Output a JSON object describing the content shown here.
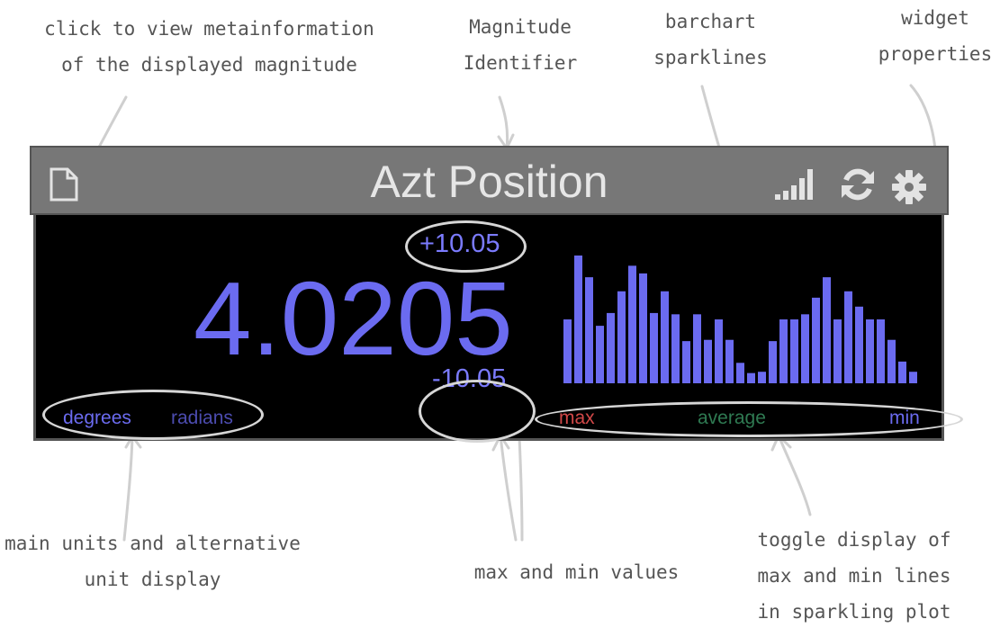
{
  "annotations": {
    "metainfo": "click to view metainformation\nof the displayed magnitude",
    "identifier": "Magnitude\nIdentifier",
    "sparklines": "barchart\nsparklines",
    "properties": "widget\nproperties",
    "units": "main units and alternative\nunit display",
    "maxmin": "max and min values",
    "toggle": "toggle display of\nmax and min lines\nin sparkling plot"
  },
  "widget": {
    "title": "Azt Position",
    "icons": [
      "document-icon",
      "signal-bars-icon",
      "refresh-icon",
      "gear-icon"
    ],
    "value": "4.0205",
    "max": "+10.05",
    "min": "-10.05",
    "unit_main": "degrees",
    "unit_alt": "radians",
    "legend": {
      "max": "max",
      "average": "average",
      "min": "min"
    }
  },
  "colors": {
    "bar": "#6b6bf0",
    "value": "#6b6bf0",
    "legend_max": "#d24848",
    "legend_avg": "#2f7a52",
    "legend_min": "#6b6bf0",
    "titlebar": "#777777"
  },
  "chart_data": {
    "type": "bar",
    "values": [
      0.5,
      1.0,
      0.83,
      0.45,
      0.55,
      0.72,
      0.92,
      0.86,
      0.55,
      0.72,
      0.54,
      0.33,
      0.54,
      0.34,
      0.5,
      0.34,
      0.16,
      0.08,
      0.09,
      0.33,
      0.5,
      0.5,
      0.54,
      0.67,
      0.83,
      0.5,
      0.72,
      0.6,
      0.5,
      0.5,
      0.34,
      0.17,
      0.09
    ],
    "ylim": [
      0,
      1
    ]
  }
}
